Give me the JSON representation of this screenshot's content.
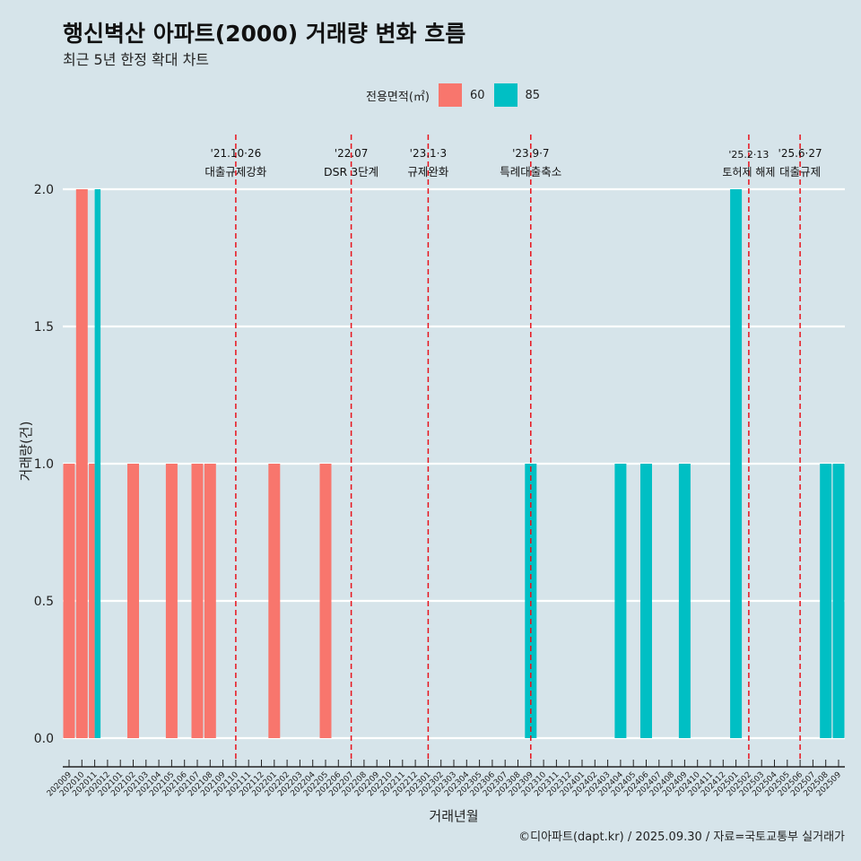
{
  "title": "행신벽산 아파트(2000) 거래량 변화 흐름",
  "subtitle": "최근 5년 한정 확대 차트",
  "caption": "©디아파트(dapt.kr) / 2025.09.30 / 자료=국토교통부 실거래가",
  "chart_data": {
    "type": "bar",
    "xlabel": "거래년월",
    "ylabel": "거래량(건)",
    "ylim": [
      0,
      2
    ],
    "yticks": [
      0,
      0.5,
      1,
      1.5,
      2
    ],
    "ytick_labels": [
      "0.0",
      "0.5",
      "1.0",
      "1.5",
      "2.0"
    ],
    "legend": {
      "title": "전용면적(㎡)",
      "position": "top"
    },
    "categories": [
      "202009",
      "202010",
      "202011",
      "202012",
      "202101",
      "202102",
      "202103",
      "202104",
      "202105",
      "202106",
      "202107",
      "202108",
      "202109",
      "202110",
      "202111",
      "202112",
      "202201",
      "202202",
      "202203",
      "202204",
      "202205",
      "202206",
      "202207",
      "202208",
      "202209",
      "202210",
      "202211",
      "202212",
      "202301",
      "202302",
      "202303",
      "202304",
      "202305",
      "202306",
      "202307",
      "202308",
      "202309",
      "202310",
      "202311",
      "202312",
      "202401",
      "202402",
      "202403",
      "202404",
      "202405",
      "202406",
      "202407",
      "202408",
      "202409",
      "202410",
      "202411",
      "202412",
      "202501",
      "202502",
      "202503",
      "202504",
      "202505",
      "202506",
      "202507",
      "202508",
      "202509"
    ],
    "series": [
      {
        "name": "60",
        "color": "#f8766d",
        "points": [
          [
            "202009",
            1
          ],
          [
            "202010",
            2
          ],
          [
            "202011",
            1
          ],
          [
            "202102",
            1
          ],
          [
            "202105",
            1
          ],
          [
            "202107",
            1
          ],
          [
            "202108",
            1
          ],
          [
            "202201",
            1
          ],
          [
            "202205",
            1
          ]
        ]
      },
      {
        "name": "85",
        "color": "#00bfc4",
        "points": [
          [
            "202011",
            2
          ],
          [
            "202309",
            1
          ],
          [
            "202404",
            1
          ],
          [
            "202406",
            1
          ],
          [
            "202409",
            1
          ],
          [
            "202501",
            2
          ],
          [
            "202508",
            1
          ],
          [
            "202509",
            1
          ]
        ]
      }
    ],
    "events": [
      {
        "at": "202110",
        "date": "'21.10·26",
        "label": "대출규제강화"
      },
      {
        "at": "202207",
        "date": "'22.07",
        "label": "DSR 3단계"
      },
      {
        "at": "202301",
        "date": "'23.1·3",
        "label": "규제완화"
      },
      {
        "at": "202309",
        "date": "'23.9·7",
        "label": "특례대출축소"
      },
      {
        "at": "202502",
        "date": "'25.2·13",
        "label": "토허제 해제"
      },
      {
        "at": "202506",
        "date": "'25.6·27",
        "label": "대출규제"
      }
    ]
  }
}
